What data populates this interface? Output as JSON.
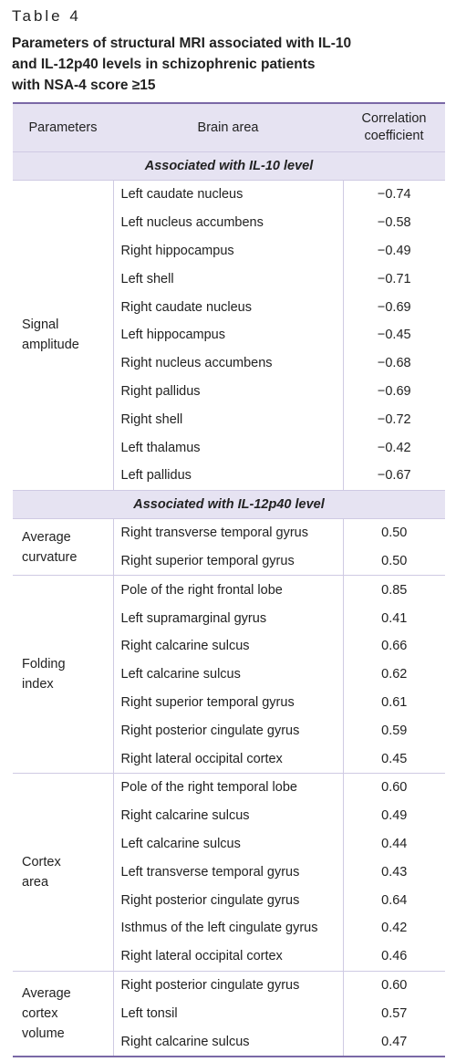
{
  "label": "Table 4",
  "caption": [
    "Parameters of structural MRI associated with IL-10",
    "and IL-12p40 levels in schizophrenic patients",
    "with NSA-4 score ≥15"
  ],
  "table": {
    "header": [
      "Parameters",
      "Brain area",
      "Correlation coefficient"
    ],
    "sections": [
      {
        "title": "Associated with IL-10 level",
        "groups": [
          {
            "parameter": "Signal amplitude",
            "rows": [
              [
                "Left caudate nucleus",
                "−0.74"
              ],
              [
                "Left nucleus accumbens",
                "−0.58"
              ],
              [
                "Right hippocampus",
                "−0.49"
              ],
              [
                "Left shell",
                "−0.71"
              ],
              [
                "Right caudate nucleus",
                "−0.69"
              ],
              [
                "Left hippocampus",
                "−0.45"
              ],
              [
                "Right nucleus accumbens",
                "−0.68"
              ],
              [
                "Right pallidus",
                "−0.69"
              ],
              [
                "Right shell",
                "−0.72"
              ],
              [
                "Left thalamus",
                "−0.42"
              ],
              [
                "Left pallidus",
                "−0.67"
              ]
            ]
          }
        ]
      },
      {
        "title": "Associated with IL-12p40 level",
        "groups": [
          {
            "parameter": "Average curvature",
            "rows": [
              [
                "Right transverse temporal gyrus",
                "0.50"
              ],
              [
                "Right superior temporal gyrus",
                "0.50"
              ]
            ]
          },
          {
            "parameter": "Folding index",
            "rows": [
              [
                "Pole of the right frontal lobe",
                "0.85"
              ],
              [
                "Left supramarginal gyrus",
                "0.41"
              ],
              [
                "Right calcarine sulcus",
                "0.66"
              ],
              [
                "Left calcarine sulcus",
                "0.62"
              ],
              [
                "Right superior temporal gyrus",
                "0.61"
              ],
              [
                "Right posterior cingulate gyrus",
                "0.59"
              ],
              [
                "Right lateral occipital cortex",
                "0.45"
              ]
            ]
          },
          {
            "parameter": "Cortex area",
            "rows": [
              [
                "Pole of the right temporal lobe",
                "0.60"
              ],
              [
                "Right calcarine sulcus",
                "0.49"
              ],
              [
                "Left calcarine sulcus",
                "0.44"
              ],
              [
                "Left transverse temporal gyrus",
                "0.43"
              ],
              [
                "Right posterior cingulate gyrus",
                "0.64"
              ],
              [
                "Isthmus of the left cingulate gyrus",
                "0.42"
              ],
              [
                "Right lateral occipital cortex",
                "0.46"
              ]
            ]
          },
          {
            "parameter": "Average cortex volume",
            "rows": [
              [
                "Right posterior cingulate gyrus",
                "0.60"
              ],
              [
                "Left tonsil",
                "0.57"
              ],
              [
                "Right calcarine sulcus",
                "0.47"
              ]
            ]
          }
        ]
      }
    ]
  }
}
